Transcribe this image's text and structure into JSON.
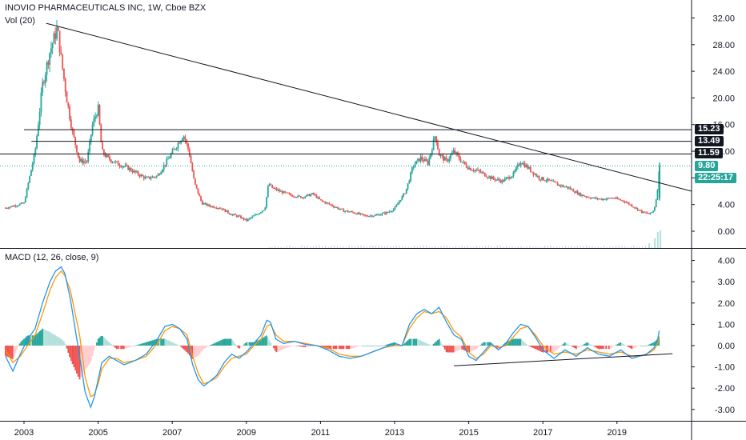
{
  "header": {
    "title": "INOVIO PHARMACEUTICALS INC, 1W, Cboe BZX",
    "volume_label": "Vol (20)",
    "macd_label": "MACD (12, 26, close, 9)"
  },
  "colors": {
    "up": "#26a69a",
    "down": "#ef5350",
    "macd_line": "#2196f3",
    "signal_line": "#ff9800",
    "hist_pos_strong": "#26a69a",
    "hist_pos_weak": "#b2dfdb",
    "hist_neg_strong": "#ef5350",
    "hist_neg_weak": "#ffcdd2",
    "current_price_line": "#26a69a",
    "trendline": "#131722"
  },
  "price_axis": {
    "ticks": [
      "32.00",
      "28.00",
      "24.00",
      "20.00",
      "16.00",
      "12.00",
      "8.00",
      "4.00",
      "0.00"
    ]
  },
  "macd_axis": {
    "ticks": [
      "4.00",
      "3.00",
      "2.00",
      "1.00",
      "0.00",
      "-1.00",
      "-2.00",
      "-3.00"
    ]
  },
  "time_axis": {
    "labels": [
      "2003",
      "2005",
      "2007",
      "2009",
      "2011",
      "2013",
      "2015",
      "2017",
      "2019"
    ]
  },
  "levels": [
    {
      "value": "15.23"
    },
    {
      "value": "13.49"
    },
    {
      "value": "11.59"
    }
  ],
  "current_price": {
    "value": "9.80",
    "countdown": "22:25:17"
  },
  "chart_data": [
    {
      "type": "candlestick",
      "title": "INOVIO PHARMACEUTICALS INC, 1W, Cboe BZX",
      "ylim": [
        -2,
        33
      ],
      "x": [
        2002.5,
        2003.0,
        2003.3,
        2003.5,
        2003.7,
        2003.9,
        2004.0,
        2004.15,
        2004.3,
        2004.5,
        2004.7,
        2004.85,
        2005.0,
        2005.1,
        2005.25,
        2005.5,
        2005.8,
        2006.0,
        2006.3,
        2006.6,
        2006.85,
        2007.0,
        2007.3,
        2007.45,
        2007.6,
        2007.8,
        2008.0,
        2008.3,
        2008.6,
        2008.8,
        2009.0,
        2009.3,
        2009.5,
        2009.6,
        2009.7,
        2009.9,
        2010.2,
        2010.5,
        2010.8,
        2011.0,
        2011.3,
        2011.6,
        2011.9,
        2012.2,
        2012.5,
        2012.8,
        2013.0,
        2013.3,
        2013.5,
        2013.7,
        2013.9,
        2014.1,
        2014.2,
        2014.4,
        2014.6,
        2014.8,
        2015.0,
        2015.3,
        2015.6,
        2015.9,
        2016.2,
        2016.4,
        2016.6,
        2016.9,
        2017.2,
        2017.4,
        2017.7,
        2018.0,
        2018.3,
        2018.6,
        2018.9,
        2019.2,
        2019.5,
        2019.7,
        2019.9,
        2020.0,
        2020.08,
        2020.15
      ],
      "y": [
        3.5,
        4.2,
        12.0,
        22.0,
        27.0,
        30.5,
        26.0,
        20.0,
        15.0,
        10.5,
        10.5,
        16.0,
        18.5,
        12.0,
        11.0,
        10.2,
        9.5,
        8.8,
        7.9,
        8.3,
        10.5,
        11.8,
        14.5,
        12.0,
        7.2,
        4.2,
        3.8,
        3.5,
        2.5,
        2.2,
        1.6,
        2.6,
        3.4,
        7.2,
        6.5,
        6.0,
        5.4,
        5.1,
        5.6,
        4.6,
        3.9,
        3.1,
        2.8,
        2.3,
        2.4,
        2.8,
        3.4,
        6.0,
        9.8,
        11.0,
        10.2,
        14.5,
        11.5,
        10.5,
        12.0,
        10.5,
        9.5,
        8.9,
        8.0,
        7.5,
        8.5,
        10.5,
        9.5,
        8.0,
        7.5,
        7.0,
        6.5,
        5.5,
        5.0,
        4.8,
        5.0,
        4.5,
        3.5,
        2.8,
        2.6,
        3.2,
        5.5,
        9.8
      ]
    },
    {
      "type": "line",
      "title": "MACD (12, 26, close, 9)",
      "ylim": [
        -3.5,
        4.5
      ],
      "x": [
        2002.5,
        2002.7,
        2002.9,
        2003.1,
        2003.3,
        2003.5,
        2003.7,
        2003.85,
        2004.0,
        2004.1,
        2004.25,
        2004.5,
        2004.65,
        2004.8,
        2004.9,
        2005.0,
        2005.1,
        2005.3,
        2005.5,
        2005.7,
        2006.0,
        2006.3,
        2006.6,
        2006.8,
        2007.0,
        2007.2,
        2007.4,
        2007.55,
        2007.7,
        2007.85,
        2008.0,
        2008.2,
        2008.4,
        2008.6,
        2008.8,
        2009.0,
        2009.2,
        2009.4,
        2009.55,
        2009.65,
        2009.8,
        2010.0,
        2010.3,
        2010.6,
        2010.9,
        2011.2,
        2011.5,
        2011.8,
        2012.1,
        2012.4,
        2012.7,
        2013.0,
        2013.2,
        2013.4,
        2013.6,
        2013.8,
        2014.0,
        2014.2,
        2014.4,
        2014.6,
        2014.8,
        2015.0,
        2015.2,
        2015.4,
        2015.6,
        2015.8,
        2016.0,
        2016.2,
        2016.4,
        2016.6,
        2016.8,
        2017.0,
        2017.3,
        2017.6,
        2017.9,
        2018.2,
        2018.5,
        2018.8,
        2019.1,
        2019.4,
        2019.6,
        2019.8,
        2020.0,
        2020.1,
        2020.15
      ],
      "series": [
        {
          "values": [
            -0.5,
            -1.2,
            -0.4,
            0.3,
            0.8,
            2.0,
            3.0,
            3.5,
            3.7,
            3.4,
            2.2,
            -0.5,
            -2.2,
            -2.9,
            -2.4,
            -1.6,
            -0.8,
            -0.5,
            -0.7,
            -0.9,
            -0.7,
            -0.4,
            0.3,
            0.9,
            1.0,
            0.8,
            0.3,
            -0.9,
            -1.6,
            -1.9,
            -1.7,
            -1.4,
            -0.8,
            -0.4,
            -0.6,
            -0.3,
            0.1,
            0.5,
            1.2,
            1.1,
            0.3,
            0.1,
            0.2,
            0.05,
            0.0,
            -0.2,
            -0.5,
            -0.6,
            -0.5,
            -0.3,
            -0.1,
            0.1,
            0.0,
            1.0,
            1.5,
            1.7,
            1.5,
            1.8,
            1.1,
            0.5,
            0.3,
            -0.5,
            -0.7,
            -0.3,
            0.1,
            -0.2,
            0.1,
            0.6,
            1.0,
            0.9,
            0.4,
            -0.2,
            -0.6,
            -0.2,
            -0.5,
            -0.1,
            -0.4,
            -0.5,
            -0.2,
            -0.6,
            -0.5,
            -0.4,
            -0.1,
            0.3,
            0.8
          ]
        },
        {
          "values": [
            -0.2,
            -0.8,
            -0.5,
            0.0,
            0.5,
            1.5,
            2.6,
            3.2,
            3.5,
            3.3,
            2.6,
            0.5,
            -1.5,
            -2.4,
            -2.3,
            -1.8,
            -1.1,
            -0.6,
            -0.6,
            -0.8,
            -0.7,
            -0.5,
            0.1,
            0.7,
            0.9,
            0.8,
            0.5,
            -0.5,
            -1.3,
            -1.8,
            -1.7,
            -1.5,
            -1.0,
            -0.6,
            -0.5,
            -0.4,
            0.0,
            0.3,
            0.9,
            1.0,
            0.5,
            0.2,
            0.2,
            0.1,
            0.0,
            -0.1,
            -0.4,
            -0.5,
            -0.5,
            -0.3,
            -0.1,
            0.0,
            0.0,
            0.8,
            1.3,
            1.6,
            1.5,
            1.6,
            1.3,
            0.7,
            0.4,
            -0.3,
            -0.6,
            -0.4,
            0.0,
            -0.1,
            0.0,
            0.4,
            0.8,
            0.9,
            0.5,
            0.0,
            -0.4,
            -0.3,
            -0.4,
            -0.2,
            -0.3,
            -0.4,
            -0.3,
            -0.5,
            -0.5,
            -0.4,
            -0.2,
            0.1,
            0.5
          ]
        }
      ]
    }
  ]
}
